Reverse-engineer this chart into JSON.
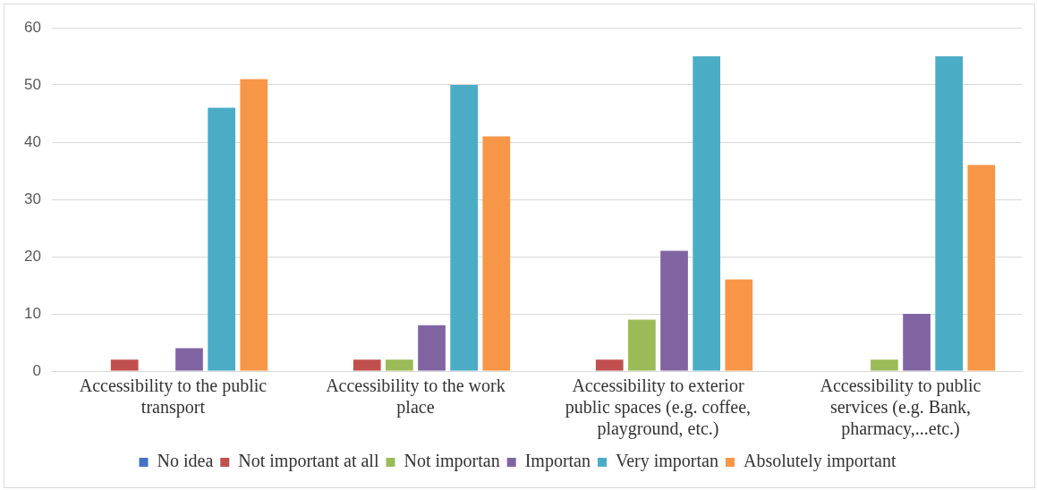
{
  "chart_data": {
    "type": "bar",
    "categories": [
      "Accessibility to the public transport",
      "Accessibility to the work place",
      "Accessibility to exterior public spaces (e.g. coffee, playground, etc.)",
      "Accessibility to public services (e.g. Bank, pharmacy,...etc.)"
    ],
    "series": [
      {
        "name": "No idea",
        "color": "#4472c4",
        "values": [
          0,
          0,
          0,
          0
        ]
      },
      {
        "name": "Not important at all",
        "color": "#c0504d",
        "values": [
          2,
          2,
          2,
          0
        ]
      },
      {
        "name": "Not importan",
        "color": "#9bbb59",
        "values": [
          0,
          2,
          9,
          2
        ]
      },
      {
        "name": "Importan",
        "color": "#8064a2",
        "values": [
          4,
          8,
          21,
          10
        ]
      },
      {
        "name": "Very importan",
        "color": "#4bacc6",
        "values": [
          46,
          50,
          55,
          55
        ]
      },
      {
        "name": "Absolutely important",
        "color": "#f79646",
        "values": [
          51,
          41,
          16,
          36
        ]
      }
    ],
    "ylim": [
      0,
      60
    ],
    "yticks": [
      0,
      10,
      20,
      30,
      40,
      50,
      60
    ],
    "grid": "y",
    "legend": "bottom"
  }
}
